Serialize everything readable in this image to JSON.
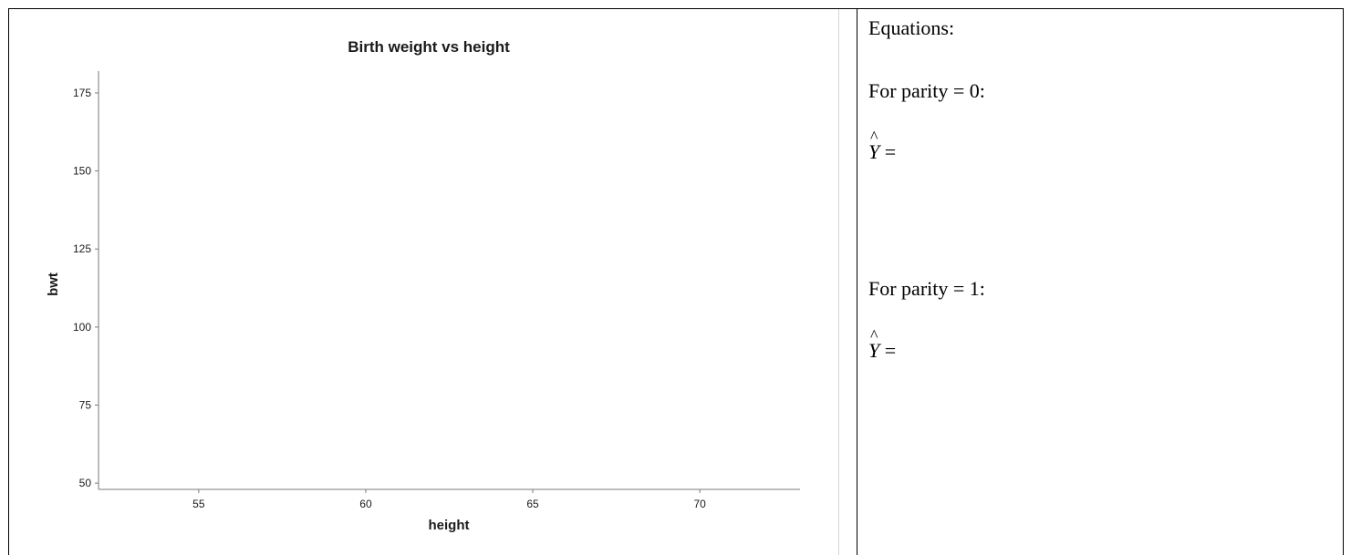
{
  "equations": {
    "heading": "Equations:",
    "parity0_label": "For parity = 0:",
    "parity1_label": "For parity = 1:",
    "yhat_symbol": "Y",
    "hat_mark": "^",
    "equals": "="
  },
  "chart_data": {
    "type": "scatter",
    "title": "Birth weight vs height",
    "xlabel": "height",
    "ylabel": "bwt",
    "x_ticks": [
      55,
      60,
      65,
      70
    ],
    "y_ticks": [
      50,
      75,
      100,
      125,
      150,
      175
    ],
    "xlim": [
      52,
      73
    ],
    "ylim": [
      48,
      182
    ],
    "series": [],
    "grid": false
  }
}
